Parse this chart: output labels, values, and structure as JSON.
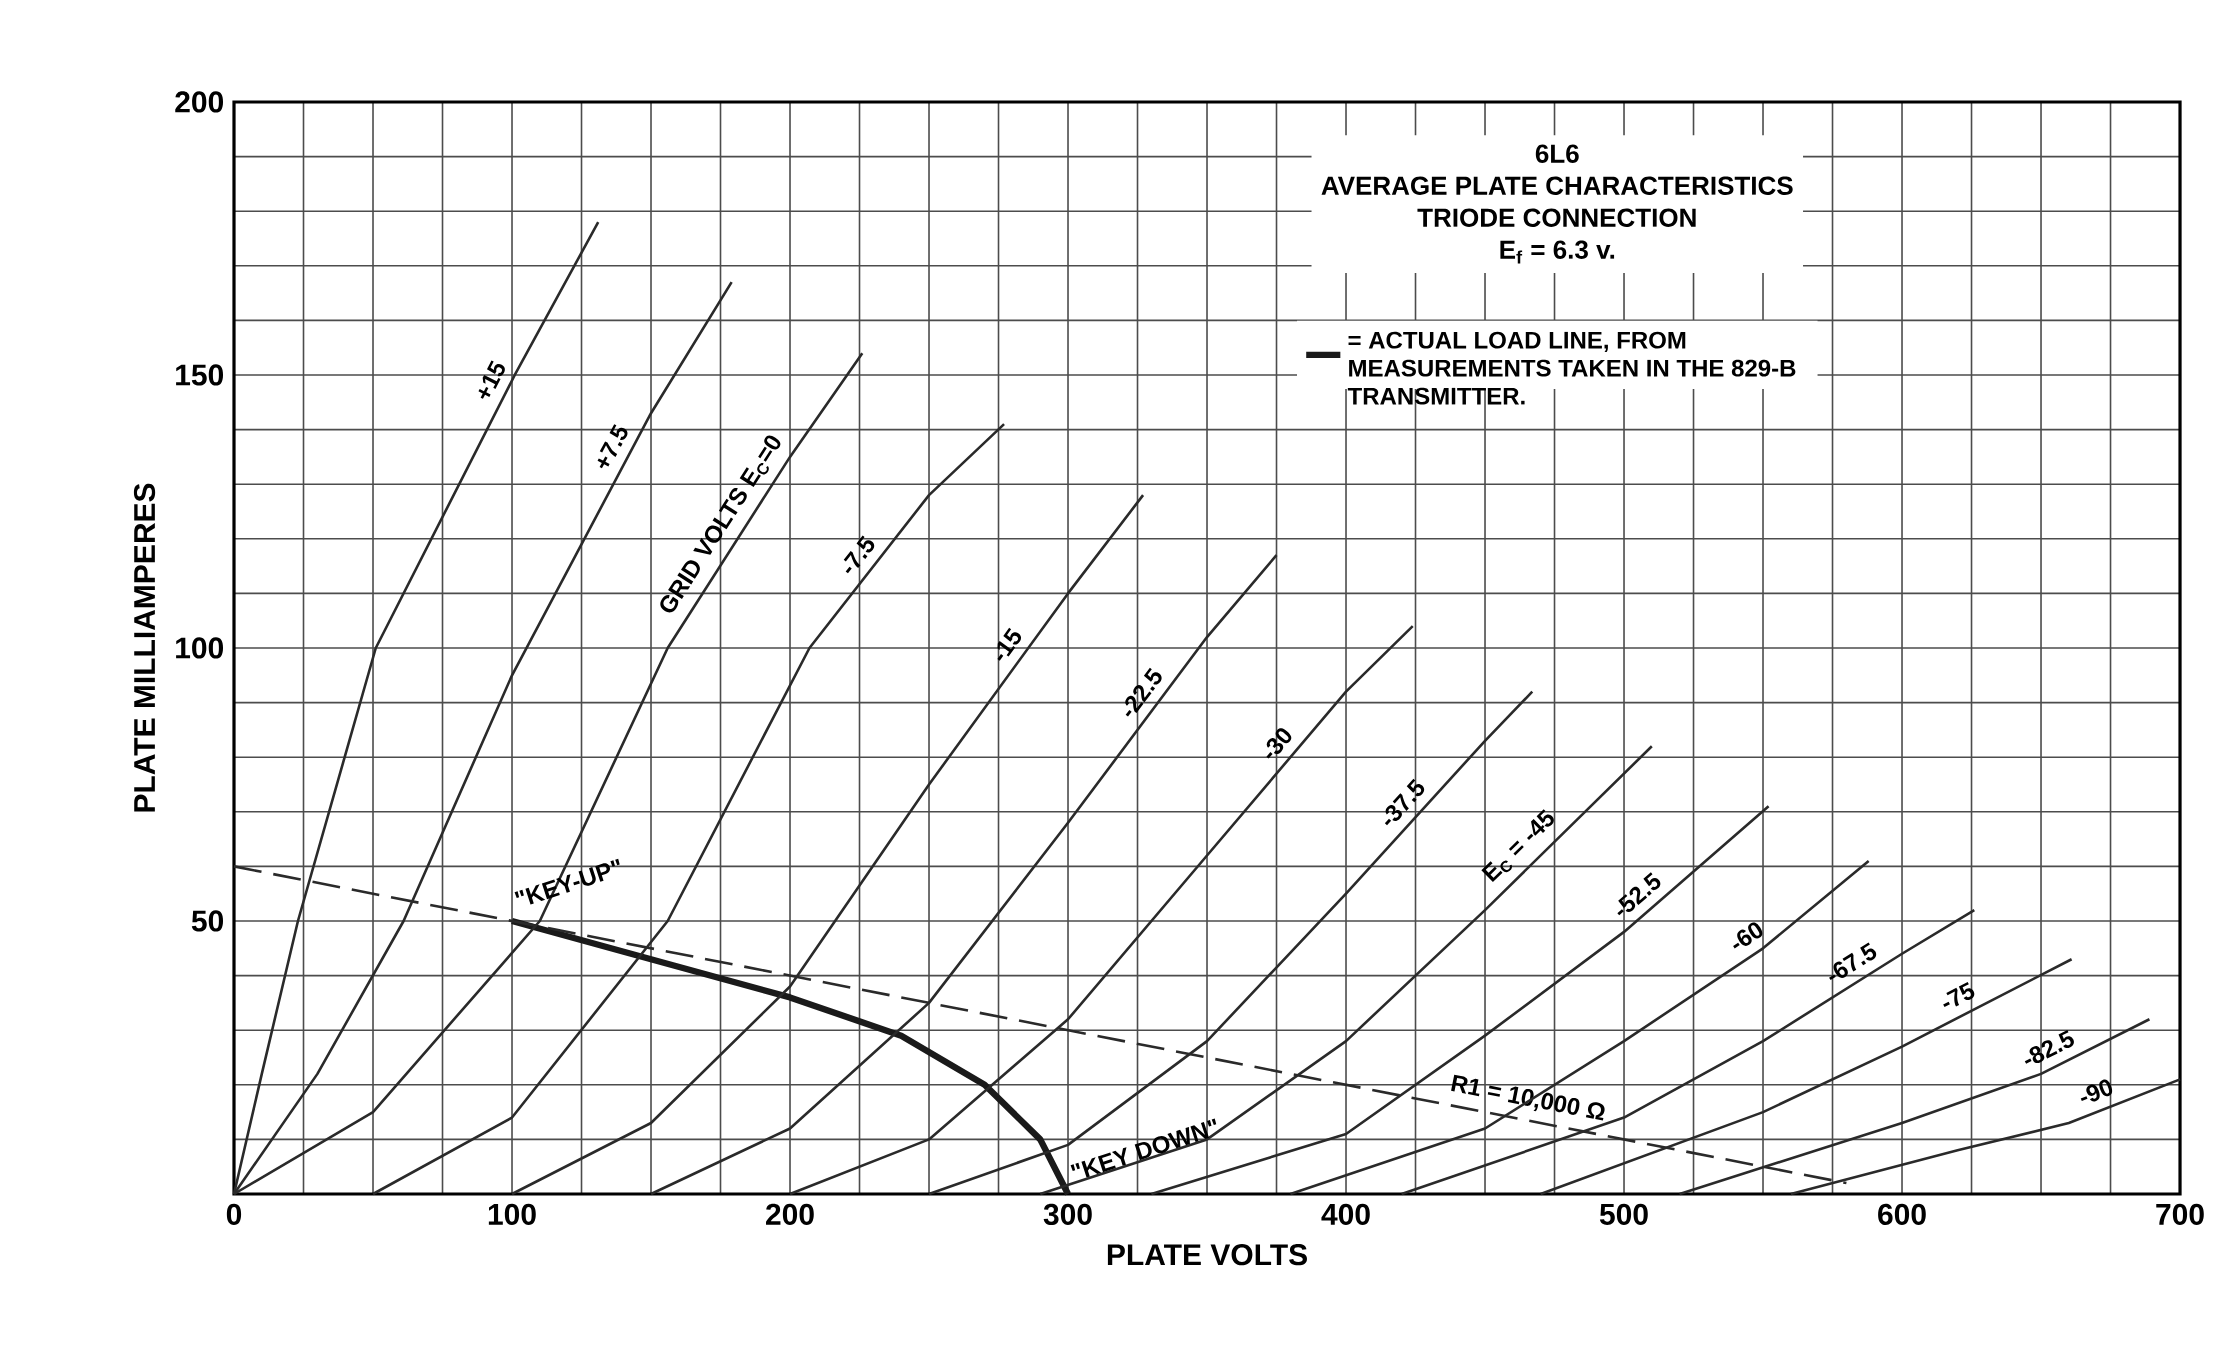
{
  "chart_data": {
    "type": "line",
    "title": "6L6",
    "subtitle": "AVERAGE PLATE CHARACTERISTICS",
    "xlabel": "PLATE VOLTS",
    "ylabel": "PLATE MILLIAMPERES",
    "xlim": [
      0,
      700
    ],
    "ylim": [
      0,
      200
    ],
    "grid": true,
    "legend": "top",
    "xticks": [
      0,
      {
        "value": 25,
        "label": null
      },
      {
        "value": 50,
        "label": null
      },
      {
        "value": 75,
        "label": null
      },
      100,
      {
        "value": 125,
        "label": null
      },
      {
        "value": 150,
        "label": null
      },
      {
        "value": 175,
        "label": null
      },
      200,
      {
        "value": 225,
        "label": null
      },
      {
        "value": 250,
        "label": null
      },
      {
        "value": 275,
        "label": null
      },
      300,
      {
        "value": 325,
        "label": null
      },
      {
        "value": 350,
        "label": null
      },
      {
        "value": 375,
        "label": null
      },
      400,
      {
        "value": 425,
        "label": null
      },
      {
        "value": 450,
        "label": null
      },
      {
        "value": 475,
        "label": null
      },
      500,
      {
        "value": 525,
        "label": null
      },
      {
        "value": 550,
        "label": null
      },
      {
        "value": 575,
        "label": null
      },
      600,
      {
        "value": 625,
        "label": null
      },
      {
        "value": 650,
        "label": null
      },
      {
        "value": 675,
        "label": null
      },
      700
    ],
    "yticks": [
      {
        "value": 0,
        "label": null
      },
      {
        "value": 10,
        "label": null
      },
      {
        "value": 20,
        "label": null
      },
      {
        "value": 30,
        "label": null
      },
      {
        "value": 40,
        "label": null
      },
      50,
      {
        "value": 60,
        "label": null
      },
      {
        "value": 70,
        "label": null
      },
      {
        "value": 80,
        "label": null
      },
      {
        "value": 90,
        "label": null
      },
      100,
      {
        "value": 110,
        "label": null
      },
      {
        "value": 120,
        "label": null
      },
      {
        "value": 130,
        "label": null
      },
      {
        "value": 140,
        "label": null
      },
      150,
      {
        "value": 160,
        "label": null
      },
      {
        "value": 170,
        "label": null
      },
      {
        "value": 180,
        "label": null
      },
      {
        "value": 190,
        "label": null
      },
      200
    ],
    "annotations": [
      "TRIODE CONNECTION",
      "E$_{f}$ = 6.3 v.",
      {
        "text": "\"KEY-UP\"",
        "x": 100,
        "y": 50
      },
      {
        "text": "\"KEY DOWN\"",
        "x": 300,
        "y": 0
      }
    ],
    "series": [
      {
        "name": "= ACTUAL LOAD LINE, FROM MEASUREMENTS TAKEN IN THE 829-B TRANSMITTER.",
        "color": "#1a1a1a",
        "x": [
          100,
          150,
          200,
          240,
          270,
          290,
          300
        ],
        "values": [
          50,
          43,
          36,
          29,
          20,
          10,
          0
        ]
      },
      {
        "name": "R1 = 10,000 Ω",
        "color": "#2a2a2a",
        "line_style": "dashed",
        "x": [
          0,
          580
        ],
        "values": [
          60,
          2
        ]
      },
      {
        "name": "+15",
        "color": "#2a2a2a",
        "x": [
          0,
          10,
          23,
          51,
          101,
          131
        ],
        "values": [
          0,
          22,
          50,
          100,
          150,
          178
        ]
      },
      {
        "name": "+7.5",
        "color": "#2a2a2a",
        "x": [
          0,
          30,
          61,
          100,
          150,
          179
        ],
        "values": [
          0,
          22,
          50,
          95,
          143,
          167
        ]
      },
      {
        "name": "GRID VOLTS E$_{C}$=0",
        "color": "#2a2a2a",
        "x": [
          0,
          50,
          110,
          156,
          200,
          226
        ],
        "values": [
          0,
          15,
          50,
          100,
          135,
          154
        ]
      },
      {
        "name": "-7.5",
        "color": "#2a2a2a",
        "x": [
          50,
          100,
          156,
          207,
          250,
          277
        ],
        "values": [
          0,
          14,
          50,
          100,
          128,
          141
        ]
      },
      {
        "name": "-15",
        "color": "#2a2a2a",
        "x": [
          100,
          150,
          200,
          250,
          300,
          327
        ],
        "values": [
          0,
          13,
          38,
          75,
          110,
          128
        ]
      },
      {
        "name": "-22.5",
        "color": "#2a2a2a",
        "x": [
          150,
          200,
          250,
          300,
          350,
          375
        ],
        "values": [
          0,
          12,
          35,
          68,
          102,
          117
        ]
      },
      {
        "name": "-30",
        "color": "#2a2a2a",
        "x": [
          200,
          250,
          300,
          350,
          400,
          424
        ],
        "values": [
          0,
          10,
          32,
          62,
          92,
          104
        ]
      },
      {
        "name": "-37.5",
        "color": "#2a2a2a",
        "x": [
          250,
          300,
          350,
          400,
          450,
          467
        ],
        "values": [
          0,
          9,
          28,
          55,
          83,
          92
        ]
      },
      {
        "name": "E$_{C}$ = -45",
        "color": "#2a2a2a",
        "x": [
          290,
          350,
          400,
          450,
          510
        ],
        "values": [
          0,
          10,
          28,
          52,
          82
        ]
      },
      {
        "name": "-52.5",
        "color": "#2a2a2a",
        "x": [
          330,
          400,
          450,
          500,
          552
        ],
        "values": [
          0,
          11,
          29,
          48,
          71
        ]
      },
      {
        "name": "-60",
        "color": "#2a2a2a",
        "x": [
          380,
          450,
          500,
          550,
          588
        ],
        "values": [
          0,
          12,
          28,
          45,
          61
        ]
      },
      {
        "name": "-67.5",
        "color": "#2a2a2a",
        "x": [
          420,
          500,
          550,
          600,
          626
        ],
        "values": [
          0,
          14,
          28,
          44,
          52
        ]
      },
      {
        "name": "-75",
        "color": "#2a2a2a",
        "x": [
          470,
          550,
          600,
          661
        ],
        "values": [
          0,
          15,
          27,
          43
        ]
      },
      {
        "name": "-82.5",
        "color": "#2a2a2a",
        "x": [
          520,
          600,
          650,
          689
        ],
        "values": [
          0,
          13,
          22,
          32
        ]
      },
      {
        "name": "-90",
        "color": "#2a2a2a",
        "x": [
          560,
          620,
          660,
          700
        ],
        "values": [
          0,
          8,
          13,
          21
        ]
      }
    ]
  }
}
